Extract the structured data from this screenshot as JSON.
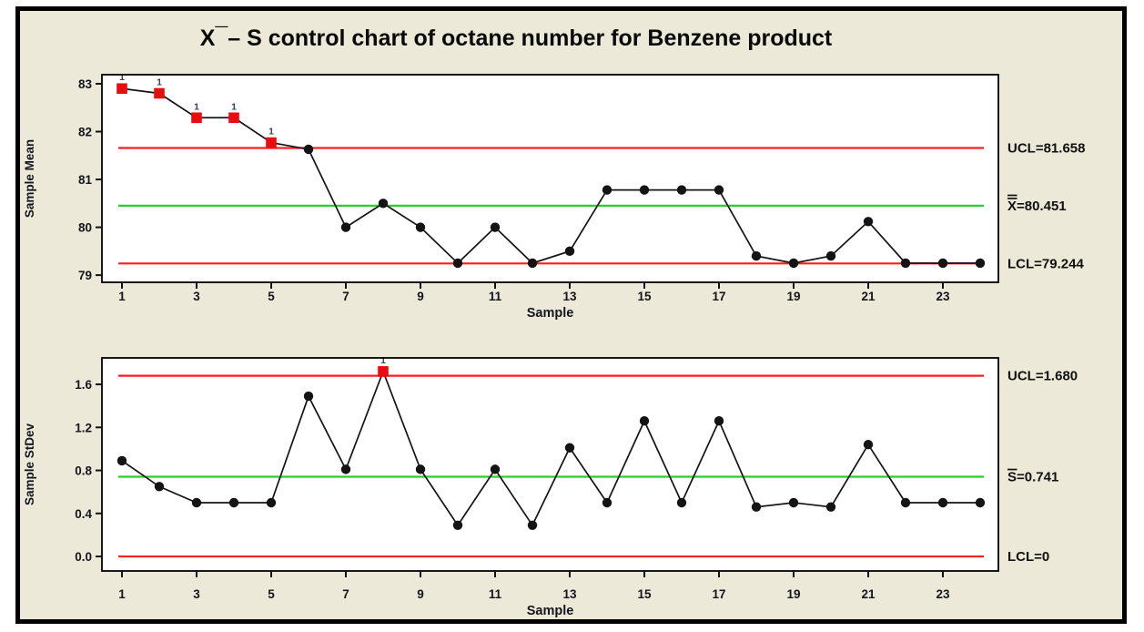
{
  "frame": {
    "background_color": "#ece9d8",
    "border_color": "#000000"
  },
  "title": {
    "x": "X",
    "bar": "¯",
    "rest": "– S control chart of octane number for Benzene product"
  },
  "chart_data": [
    {
      "type": "line",
      "name": "sample-mean-chart",
      "ylabel": "Sample Mean",
      "xlabel": "Sample",
      "ylim": [
        78.85,
        83.19
      ],
      "yticks": [
        "79",
        "80",
        "81",
        "82",
        "83"
      ],
      "xticks": [
        "1",
        "3",
        "5",
        "7",
        "9",
        "11",
        "13",
        "15",
        "17",
        "19",
        "21",
        "23"
      ],
      "x": [
        1,
        2,
        3,
        4,
        5,
        6,
        7,
        8,
        9,
        10,
        11,
        12,
        13,
        14,
        15,
        16,
        17,
        18,
        19,
        20,
        21,
        22,
        23,
        24
      ],
      "values": [
        82.9,
        82.8,
        82.29,
        82.29,
        81.77,
        81.63,
        80.0,
        80.5,
        80.0,
        79.25,
        80.0,
        79.25,
        79.5,
        80.78,
        80.78,
        80.78,
        80.78,
        79.4,
        79.25,
        79.4,
        80.12,
        79.25,
        79.25,
        79.25
      ],
      "out_of_control_x": [
        1,
        2,
        3,
        4,
        5
      ],
      "flag_label": "1",
      "limits": {
        "ucl": {
          "value": 81.658,
          "label": "UCL=81.658"
        },
        "center": {
          "value": 80.451,
          "symbol": "X",
          "overbars": 2,
          "suffix": "=80.451"
        },
        "lcl": {
          "value": 79.244,
          "label": "LCL=79.244"
        }
      },
      "colors": {
        "limit_line": "#f6211f",
        "center_line": "#2fcc2f",
        "series": "#141414",
        "out_marker": "#ea0d0d",
        "tick_text": "#15151d"
      }
    },
    {
      "type": "line",
      "name": "sample-stdev-chart",
      "ylabel": "Sample StDev",
      "xlabel": "Sample",
      "ylim": [
        -0.135,
        1.846
      ],
      "yticks": [
        "0.0",
        "0.4",
        "0.8",
        "1.2",
        "1.6"
      ],
      "xticks": [
        "1",
        "3",
        "5",
        "7",
        "9",
        "11",
        "13",
        "15",
        "17",
        "19",
        "21",
        "23"
      ],
      "x": [
        1,
        2,
        3,
        4,
        5,
        6,
        7,
        8,
        9,
        10,
        11,
        12,
        13,
        14,
        15,
        16,
        17,
        18,
        19,
        20,
        21,
        22,
        23,
        24
      ],
      "values": [
        0.89,
        0.65,
        0.5,
        0.5,
        0.5,
        1.49,
        0.81,
        1.72,
        0.81,
        0.29,
        0.81,
        0.29,
        1.01,
        0.5,
        1.26,
        0.5,
        1.26,
        0.46,
        0.5,
        0.46,
        1.04,
        0.5,
        0.5,
        0.5
      ],
      "out_of_control_x": [
        8
      ],
      "flag_label": "1",
      "limits": {
        "ucl": {
          "value": 1.68,
          "label": "UCL=1.680"
        },
        "center": {
          "value": 0.741,
          "symbol": "S",
          "overbars": 1,
          "suffix": "=0.741"
        },
        "lcl": {
          "value": 0,
          "label": "LCL=0"
        }
      },
      "colors": {
        "limit_line": "#f6211f",
        "center_line": "#2fcc2f",
        "series": "#141414",
        "out_marker": "#ea0d0d",
        "tick_text": "#15151d"
      }
    }
  ]
}
